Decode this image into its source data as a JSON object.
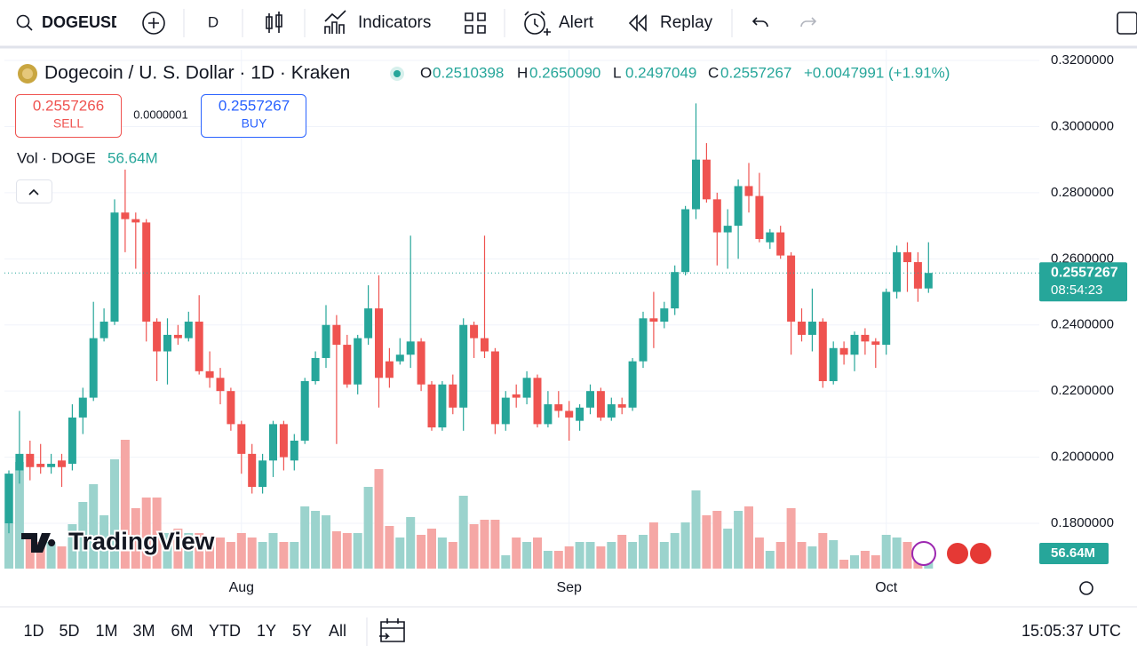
{
  "toolbar": {
    "symbol": "DOGEUSD",
    "interval": "D",
    "indicators": "Indicators",
    "alert": "Alert",
    "replay": "Replay"
  },
  "header": {
    "title": "Dogecoin / U. S. Dollar · 1D · Kraken",
    "ohlc": [
      {
        "label": "O",
        "value": "0.2510398"
      },
      {
        "label": "H",
        "value": "0.2650090"
      },
      {
        "label": "L",
        "value": "0.2497049"
      },
      {
        "label": "C",
        "value": "0.2557267"
      }
    ],
    "change": "+0.0047991 (+1.91%)"
  },
  "trade": {
    "sell_price": "0.2557266",
    "sell": "SELL",
    "spread": "0.0000001",
    "buy_price": "0.2557267",
    "buy": "BUY"
  },
  "volume_legend": {
    "label": "Vol · DOGE",
    "value": "56.64M"
  },
  "watermark": "TradingView",
  "chart_data": {
    "type": "candlestick",
    "categories": [
      null,
      null,
      null,
      null,
      null,
      null,
      null,
      null,
      null,
      null,
      null,
      null,
      null,
      null,
      null,
      null,
      null,
      null,
      null,
      null,
      null,
      null,
      "Aug",
      null,
      null,
      null,
      null,
      null,
      null,
      null,
      null,
      null,
      null,
      null,
      null,
      null,
      null,
      null,
      null,
      null,
      null,
      null,
      null,
      null,
      null,
      null,
      null,
      null,
      null,
      null,
      null,
      null,
      null,
      "Sep",
      null,
      null,
      null,
      null,
      null,
      null,
      null,
      null,
      null,
      null,
      null,
      null,
      null,
      null,
      null,
      null,
      null,
      null,
      null,
      null,
      null,
      null,
      null,
      null,
      null,
      null,
      null,
      null,
      null,
      "Oct",
      null,
      null,
      null,
      null
    ],
    "open": [
      0.18,
      0.196,
      0.201,
      0.198,
      0.197,
      0.199,
      0.198,
      0.212,
      0.218,
      0.236,
      0.241,
      0.274,
      0.272,
      0.271,
      0.241,
      0.232,
      0.237,
      0.236,
      0.241,
      0.226,
      0.224,
      0.22,
      0.21,
      0.201,
      0.191,
      0.199,
      0.21,
      0.199,
      0.205,
      0.223,
      0.23,
      0.24,
      0.234,
      0.222,
      0.236,
      0.245,
      0.229,
      0.229,
      0.231,
      0.235,
      0.222,
      0.209,
      0.222,
      0.215,
      0.24,
      0.236,
      0.232,
      0.21,
      0.219,
      0.218,
      0.224,
      0.21,
      0.216,
      0.214,
      0.211,
      0.215,
      0.22,
      0.212,
      0.216,
      0.215,
      0.229,
      0.242,
      0.241,
      0.245,
      0.256,
      0.275,
      0.29,
      0.278,
      0.268,
      0.27,
      0.282,
      0.279,
      0.265,
      0.268,
      0.261,
      0.241,
      0.237,
      0.241,
      0.223,
      0.233,
      0.231,
      0.237,
      0.235,
      0.234,
      0.25,
      0.262,
      0.259,
      0.2510398
    ],
    "high": [
      0.196,
      0.214,
      0.205,
      0.204,
      0.201,
      0.201,
      0.216,
      0.221,
      0.247,
      0.245,
      0.278,
      0.287,
      0.274,
      0.272,
      0.242,
      0.242,
      0.24,
      0.244,
      0.249,
      0.232,
      0.227,
      0.221,
      0.211,
      0.204,
      0.201,
      0.211,
      0.211,
      0.207,
      0.224,
      0.232,
      0.246,
      0.243,
      0.237,
      0.237,
      0.252,
      0.255,
      0.233,
      0.236,
      0.267,
      0.236,
      0.223,
      0.223,
      0.225,
      0.242,
      0.241,
      0.267,
      0.233,
      0.22,
      0.222,
      0.226,
      0.225,
      0.22,
      0.22,
      0.217,
      0.216,
      0.222,
      0.221,
      0.218,
      0.218,
      0.23,
      0.244,
      0.25,
      0.247,
      0.258,
      0.276,
      0.307,
      0.295,
      0.28,
      0.275,
      0.284,
      0.289,
      0.286,
      0.269,
      0.27,
      0.262,
      0.245,
      0.251,
      0.242,
      0.235,
      0.235,
      0.238,
      0.239,
      0.236,
      0.251,
      0.264,
      0.265,
      0.262,
      0.265009
    ],
    "low": [
      0.177,
      0.192,
      0.193,
      0.195,
      0.195,
      0.191,
      0.196,
      0.207,
      0.217,
      0.235,
      0.24,
      0.262,
      0.257,
      0.235,
      0.223,
      0.222,
      0.234,
      0.235,
      0.225,
      0.221,
      0.216,
      0.208,
      0.195,
      0.189,
      0.189,
      0.194,
      0.196,
      0.196,
      0.204,
      0.222,
      0.227,
      0.204,
      0.221,
      0.219,
      0.234,
      0.215,
      0.221,
      0.228,
      0.227,
      0.22,
      0.208,
      0.208,
      0.213,
      0.208,
      0.23,
      0.23,
      0.207,
      0.208,
      0.215,
      0.216,
      0.209,
      0.209,
      0.212,
      0.205,
      0.208,
      0.213,
      0.211,
      0.211,
      0.213,
      0.214,
      0.227,
      0.233,
      0.239,
      0.243,
      0.255,
      0.272,
      0.277,
      0.258,
      0.257,
      0.26,
      0.274,
      0.265,
      0.263,
      0.26,
      0.231,
      0.235,
      0.232,
      0.221,
      0.222,
      0.228,
      0.226,
      0.231,
      0.227,
      0.231,
      0.248,
      0.25,
      0.247,
      0.2497049
    ],
    "close": [
      0.195,
      0.201,
      0.197,
      0.197,
      0.198,
      0.197,
      0.212,
      0.218,
      0.236,
      0.241,
      0.274,
      0.272,
      0.271,
      0.241,
      0.232,
      0.237,
      0.236,
      0.241,
      0.226,
      0.224,
      0.22,
      0.21,
      0.201,
      0.191,
      0.199,
      0.21,
      0.2,
      0.205,
      0.223,
      0.23,
      0.24,
      0.234,
      0.222,
      0.236,
      0.245,
      0.224,
      0.224,
      0.231,
      0.235,
      0.222,
      0.209,
      0.222,
      0.215,
      0.24,
      0.236,
      0.232,
      0.21,
      0.218,
      0.218,
      0.224,
      0.21,
      0.216,
      0.214,
      0.212,
      0.215,
      0.22,
      0.212,
      0.216,
      0.215,
      0.229,
      0.242,
      0.241,
      0.245,
      0.256,
      0.275,
      0.29,
      0.278,
      0.268,
      0.27,
      0.282,
      0.279,
      0.266,
      0.268,
      0.261,
      0.241,
      0.237,
      0.241,
      0.223,
      0.233,
      0.231,
      0.237,
      0.235,
      0.234,
      0.25,
      0.262,
      0.259,
      0.251,
      0.2557267
    ],
    "volume": [
      749,
      840,
      280,
      210,
      210,
      175,
      350,
      525,
      665,
      420,
      861,
      1015,
      476,
      560,
      560,
      280,
      315,
      280,
      280,
      245,
      245,
      210,
      280,
      245,
      210,
      280,
      210,
      210,
      490,
      455,
      420,
      294,
      280,
      280,
      644,
      784,
      336,
      245,
      406,
      266,
      315,
      245,
      210,
      574,
      350,
      385,
      385,
      105,
      245,
      210,
      245,
      140,
      140,
      175,
      210,
      210,
      175,
      210,
      266,
      210,
      266,
      364,
      210,
      280,
      364,
      616,
      420,
      455,
      315,
      455,
      490,
      245,
      140,
      210,
      476,
      210,
      175,
      280,
      224,
      70,
      105,
      140,
      105,
      266,
      245,
      210,
      126,
      56.64
    ],
    "up_color": "#26a69a",
    "down_color": "#ef5350",
    "volume_up_color": "#9bd3cd",
    "volume_down_color": "#f5a7a5",
    "ylim": [
      0.1663,
      0.3227
    ],
    "yticks": [
      {
        "value": 0.32,
        "label": "0.3200000"
      },
      {
        "value": 0.3,
        "label": "0.3000000"
      },
      {
        "value": 0.28,
        "label": "0.2800000"
      },
      {
        "value": 0.26,
        "label": "0.2600000"
      },
      {
        "value": 0.24,
        "label": "0.2400000"
      },
      {
        "value": 0.22,
        "label": "0.2200000"
      },
      {
        "value": 0.2,
        "label": "0.2000000"
      },
      {
        "value": 0.18,
        "label": "0.1800000"
      }
    ],
    "grid": true,
    "last_price": 0.2557267,
    "countdown": "08:54:23",
    "last_volume": {
      "value": 56.64,
      "label": "56.64M"
    }
  },
  "range_buttons": [
    "1D",
    "5D",
    "1M",
    "3M",
    "6M",
    "YTD",
    "1Y",
    "5Y",
    "All"
  ],
  "clock": "15:05:37 UTC"
}
